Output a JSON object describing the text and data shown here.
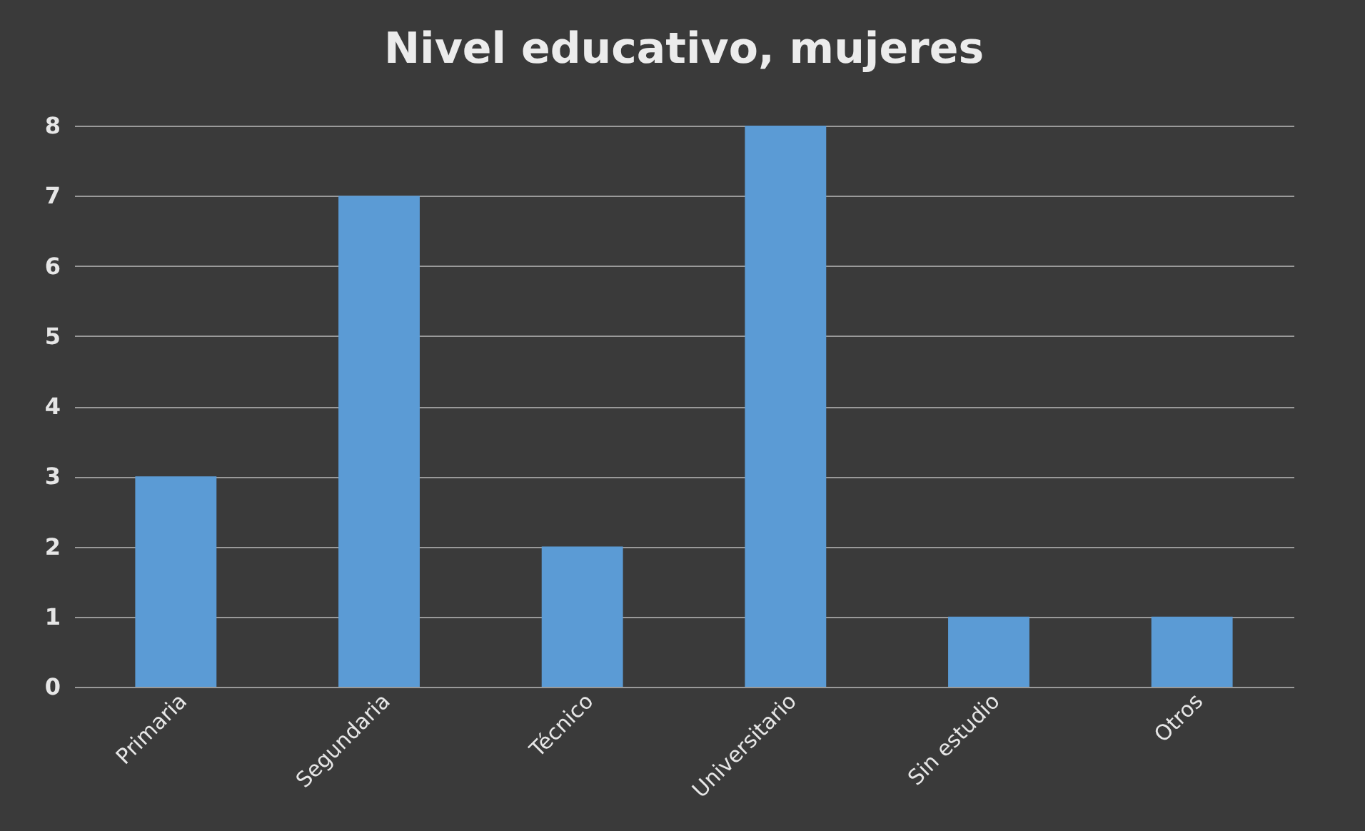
{
  "chart_data": {
    "type": "bar",
    "title": "Nivel educativo, mujeres",
    "categories": [
      "Primaria",
      "Segundaria",
      "Técnico",
      "Universitario",
      "Sin estudio",
      "Otros"
    ],
    "values": [
      3,
      7,
      2,
      8,
      1,
      1
    ],
    "color": "#5b9bd5",
    "ylim": [
      0,
      8
    ],
    "yticks": [
      0,
      1,
      2,
      3,
      4,
      5,
      6,
      7,
      8
    ],
    "grid": "y"
  }
}
